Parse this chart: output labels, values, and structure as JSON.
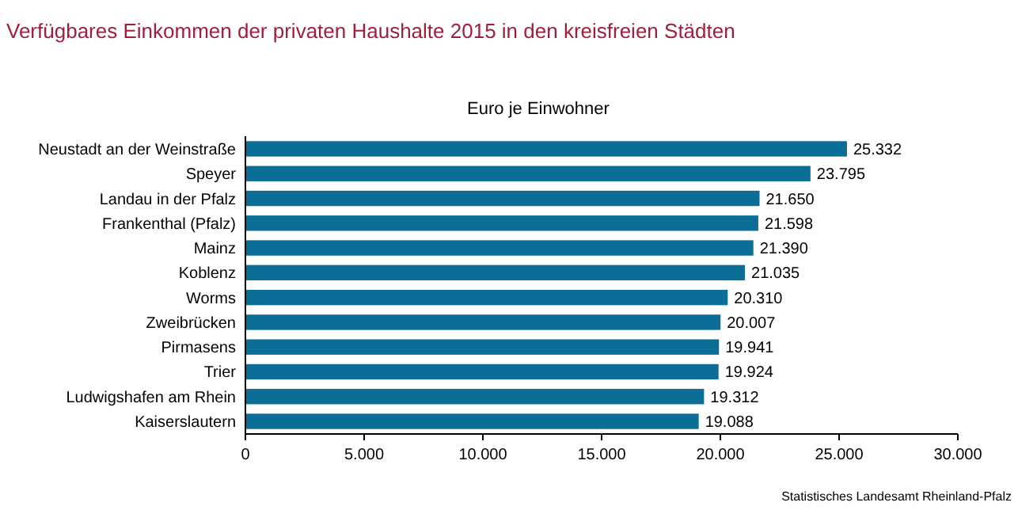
{
  "chart_data": {
    "type": "bar",
    "orientation": "horizontal",
    "title": "Verfügbares Einkommen der privaten Haushalte 2015 in den kreisfreien Städten",
    "subtitle": "Euro je Einwohner",
    "categories": [
      "Neustadt an der Weinstraße",
      "Speyer",
      "Landau in der Pfalz",
      "Frankenthal (Pfalz)",
      "Mainz",
      "Koblenz",
      "Worms",
      "Zweibrücken",
      "Pirmasens",
      "Trier",
      "Ludwigshafen am Rhein",
      "Kaiserslautern"
    ],
    "values": [
      25332,
      23795,
      21650,
      21598,
      21390,
      21035,
      20310,
      20007,
      19941,
      19924,
      19312,
      19088
    ],
    "value_labels": [
      "25.332",
      "23.795",
      "21.650",
      "21.598",
      "21.390",
      "21.035",
      "20.310",
      "20.007",
      "19.941",
      "19.924",
      "19.312",
      "19.088"
    ],
    "color": "#0a6e96",
    "xlim": [
      0,
      30000
    ],
    "xticks": [
      0,
      {
        "value": 5000,
        "label": "5.000"
      },
      {
        "value": 10000,
        "label": "10.000"
      },
      {
        "value": 15000,
        "label": "15.000"
      },
      {
        "value": 20000,
        "label": "20.000"
      },
      {
        "value": 25000,
        "label": "25.000"
      },
      {
        "value": 30000,
        "label": "30.000"
      }
    ],
    "annotations": [
      "Statistisches Landesamt Rheinland-Pfalz"
    ]
  }
}
